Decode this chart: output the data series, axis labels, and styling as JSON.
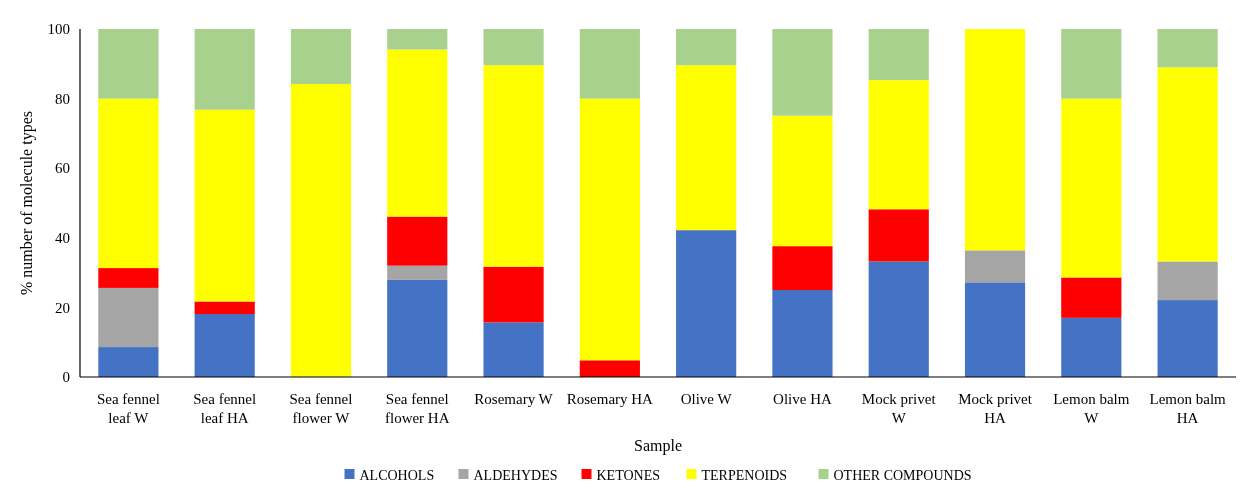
{
  "chart_data": {
    "type": "bar",
    "stacked": true,
    "xlabel": "Sample",
    "ylabel": "% number of molecule types",
    "categories": [
      "Sea fennel leaf W",
      "Sea fennel leaf HA",
      "Sea fennel flower W",
      "Sea fennel flower HA",
      "Rosemary W",
      "Rosemary HA",
      "Olive W",
      "Olive HA",
      "Mock privet W",
      "Mock privet HA",
      "Lemon balm W",
      "Lemon balm HA"
    ],
    "series": [
      {
        "name": "ALCOHOLS",
        "color": "#4472c4",
        "values": [
          8.6,
          18.1,
          0,
          27.9,
          15.7,
          0,
          42.2,
          25.0,
          33.2,
          27.2,
          17.0,
          22.1
        ]
      },
      {
        "name": "ALDEHYDES",
        "color": "#a5a5a5",
        "values": [
          17.0,
          0,
          0,
          4.1,
          0,
          0,
          0,
          0,
          0,
          9.2,
          0,
          11.1
        ]
      },
      {
        "name": "KETONES",
        "color": "#ff0000",
        "values": [
          5.7,
          3.6,
          0,
          14.1,
          16.0,
          4.8,
          0,
          12.6,
          15.0,
          0,
          11.6,
          0
        ]
      },
      {
        "name": "TERPENOIDS",
        "color": "#ffff00",
        "values": [
          48.7,
          55.1,
          84.2,
          48.0,
          57.9,
          75.2,
          47.4,
          37.5,
          37.1,
          63.6,
          51.4,
          55.8
        ]
      },
      {
        "name": "OTHER COMPOUNDS",
        "color": "#a9d18e",
        "values": [
          20.0,
          23.2,
          15.8,
          5.9,
          10.4,
          20.0,
          10.4,
          24.9,
          14.7,
          0,
          20.0,
          11.0
        ]
      }
    ],
    "ylim": [
      0,
      100
    ],
    "yticks": [
      0,
      20,
      40,
      60,
      80,
      100
    ],
    "grid": false,
    "legend": "bottom"
  }
}
